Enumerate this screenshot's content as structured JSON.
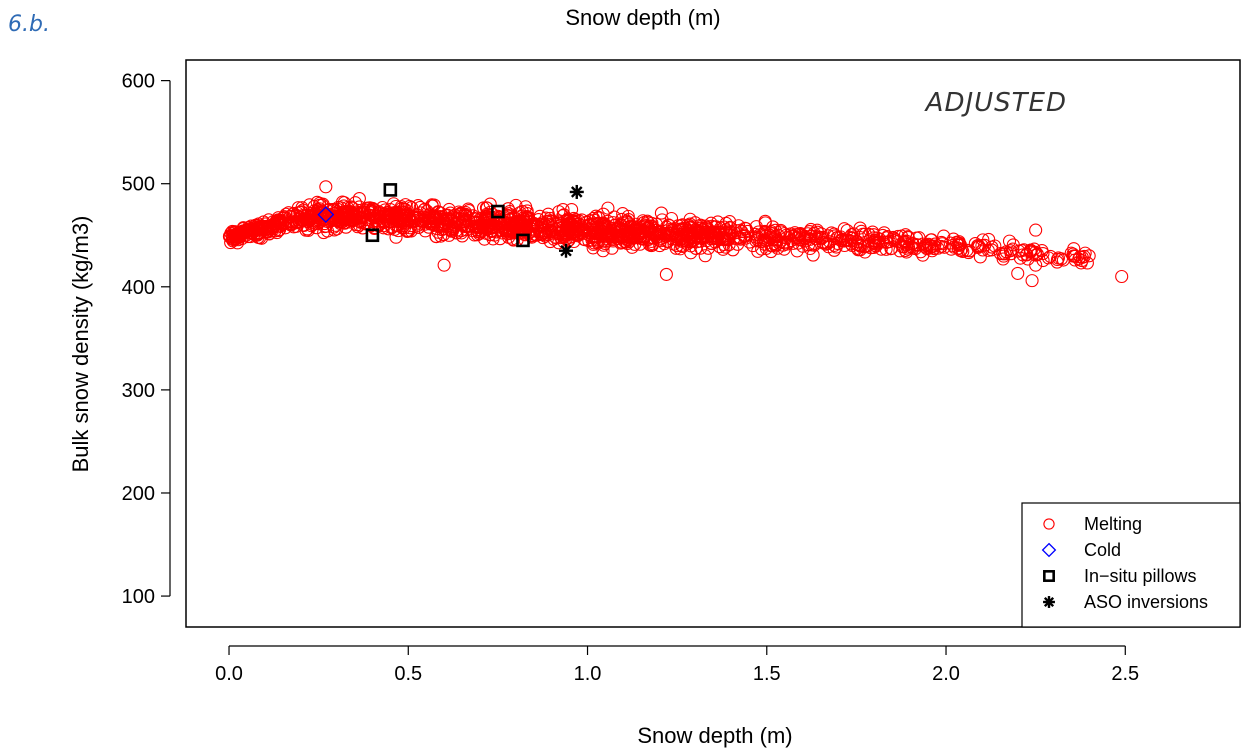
{
  "figure_label": "6.b.",
  "top_title": "Snow depth (m)",
  "chart_data": {
    "type": "scatter",
    "xlabel": "Snow depth (m)",
    "ylabel": "Bulk snow density (kg/m3)",
    "xlim": [
      -0.12,
      2.82
    ],
    "ylim": [
      70,
      620
    ],
    "x_ticks": [
      "0.0",
      "0.5",
      "1.0",
      "1.5",
      "2.0",
      "2.5"
    ],
    "x_tick_values": [
      0.0,
      0.5,
      1.0,
      1.5,
      2.0,
      2.5
    ],
    "y_ticks": [
      "100",
      "200",
      "300",
      "400",
      "500",
      "600"
    ],
    "y_tick_values": [
      100,
      200,
      300,
      400,
      500,
      600
    ],
    "annotation": "ADJUSTED",
    "grid": false,
    "legend_position": "bottom-right",
    "series": [
      {
        "name": "Melting",
        "marker": "circle",
        "color": "#ff0000",
        "trend": [
          [
            0.0,
            448
          ],
          [
            0.25,
            470
          ],
          [
            0.5,
            466
          ],
          [
            1.0,
            455
          ],
          [
            1.5,
            448
          ],
          [
            2.0,
            440
          ],
          [
            2.5,
            425
          ]
        ],
        "spread": [
          [
            0.0,
            10
          ],
          [
            0.3,
            25
          ],
          [
            1.0,
            30
          ],
          [
            1.5,
            25
          ],
          [
            2.0,
            18
          ],
          [
            2.5,
            15
          ]
        ],
        "n_points": 1700,
        "x_max": 2.5,
        "outliers": [
          [
            2.49,
            410
          ],
          [
            2.36,
            426
          ],
          [
            2.31,
            424
          ],
          [
            2.25,
            455
          ],
          [
            2.24,
            406
          ],
          [
            2.2,
            413
          ],
          [
            2.25,
            421
          ],
          [
            0.27,
            497
          ],
          [
            0.6,
            421
          ],
          [
            1.22,
            412
          ]
        ]
      },
      {
        "name": "Cold",
        "marker": "diamond",
        "color": "#0000ff",
        "x": [
          0.27
        ],
        "y": [
          470
        ]
      },
      {
        "name": "In−situ pillows",
        "marker": "square",
        "color": "#000000",
        "x": [
          0.4,
          0.45,
          0.75,
          0.82
        ],
        "y": [
          450,
          494,
          473,
          445
        ]
      },
      {
        "name": "ASO inversions",
        "marker": "asterisk",
        "color": "#000000",
        "x": [
          0.97,
          0.94
        ],
        "y": [
          492,
          435
        ]
      }
    ]
  }
}
